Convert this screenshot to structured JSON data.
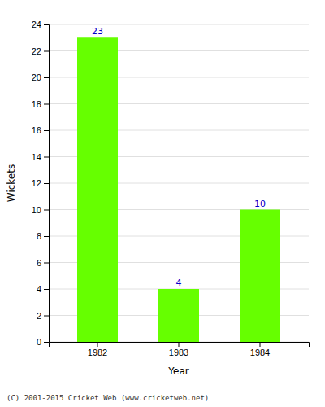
{
  "chart_data": {
    "type": "bar",
    "categories": [
      "1982",
      "1983",
      "1984"
    ],
    "values": [
      23,
      4,
      10
    ],
    "color": "#66ff00",
    "xlabel": "Year",
    "ylabel": "Wickets",
    "ylim": [
      0,
      24
    ],
    "yticks": [
      0,
      2,
      4,
      6,
      8,
      10,
      12,
      14,
      16,
      18,
      20,
      22,
      24
    ],
    "grid": true,
    "data_labels": true,
    "annotations": [
      "(C) 2001-2015 Cricket Web (www.cricketweb.net)"
    ]
  }
}
